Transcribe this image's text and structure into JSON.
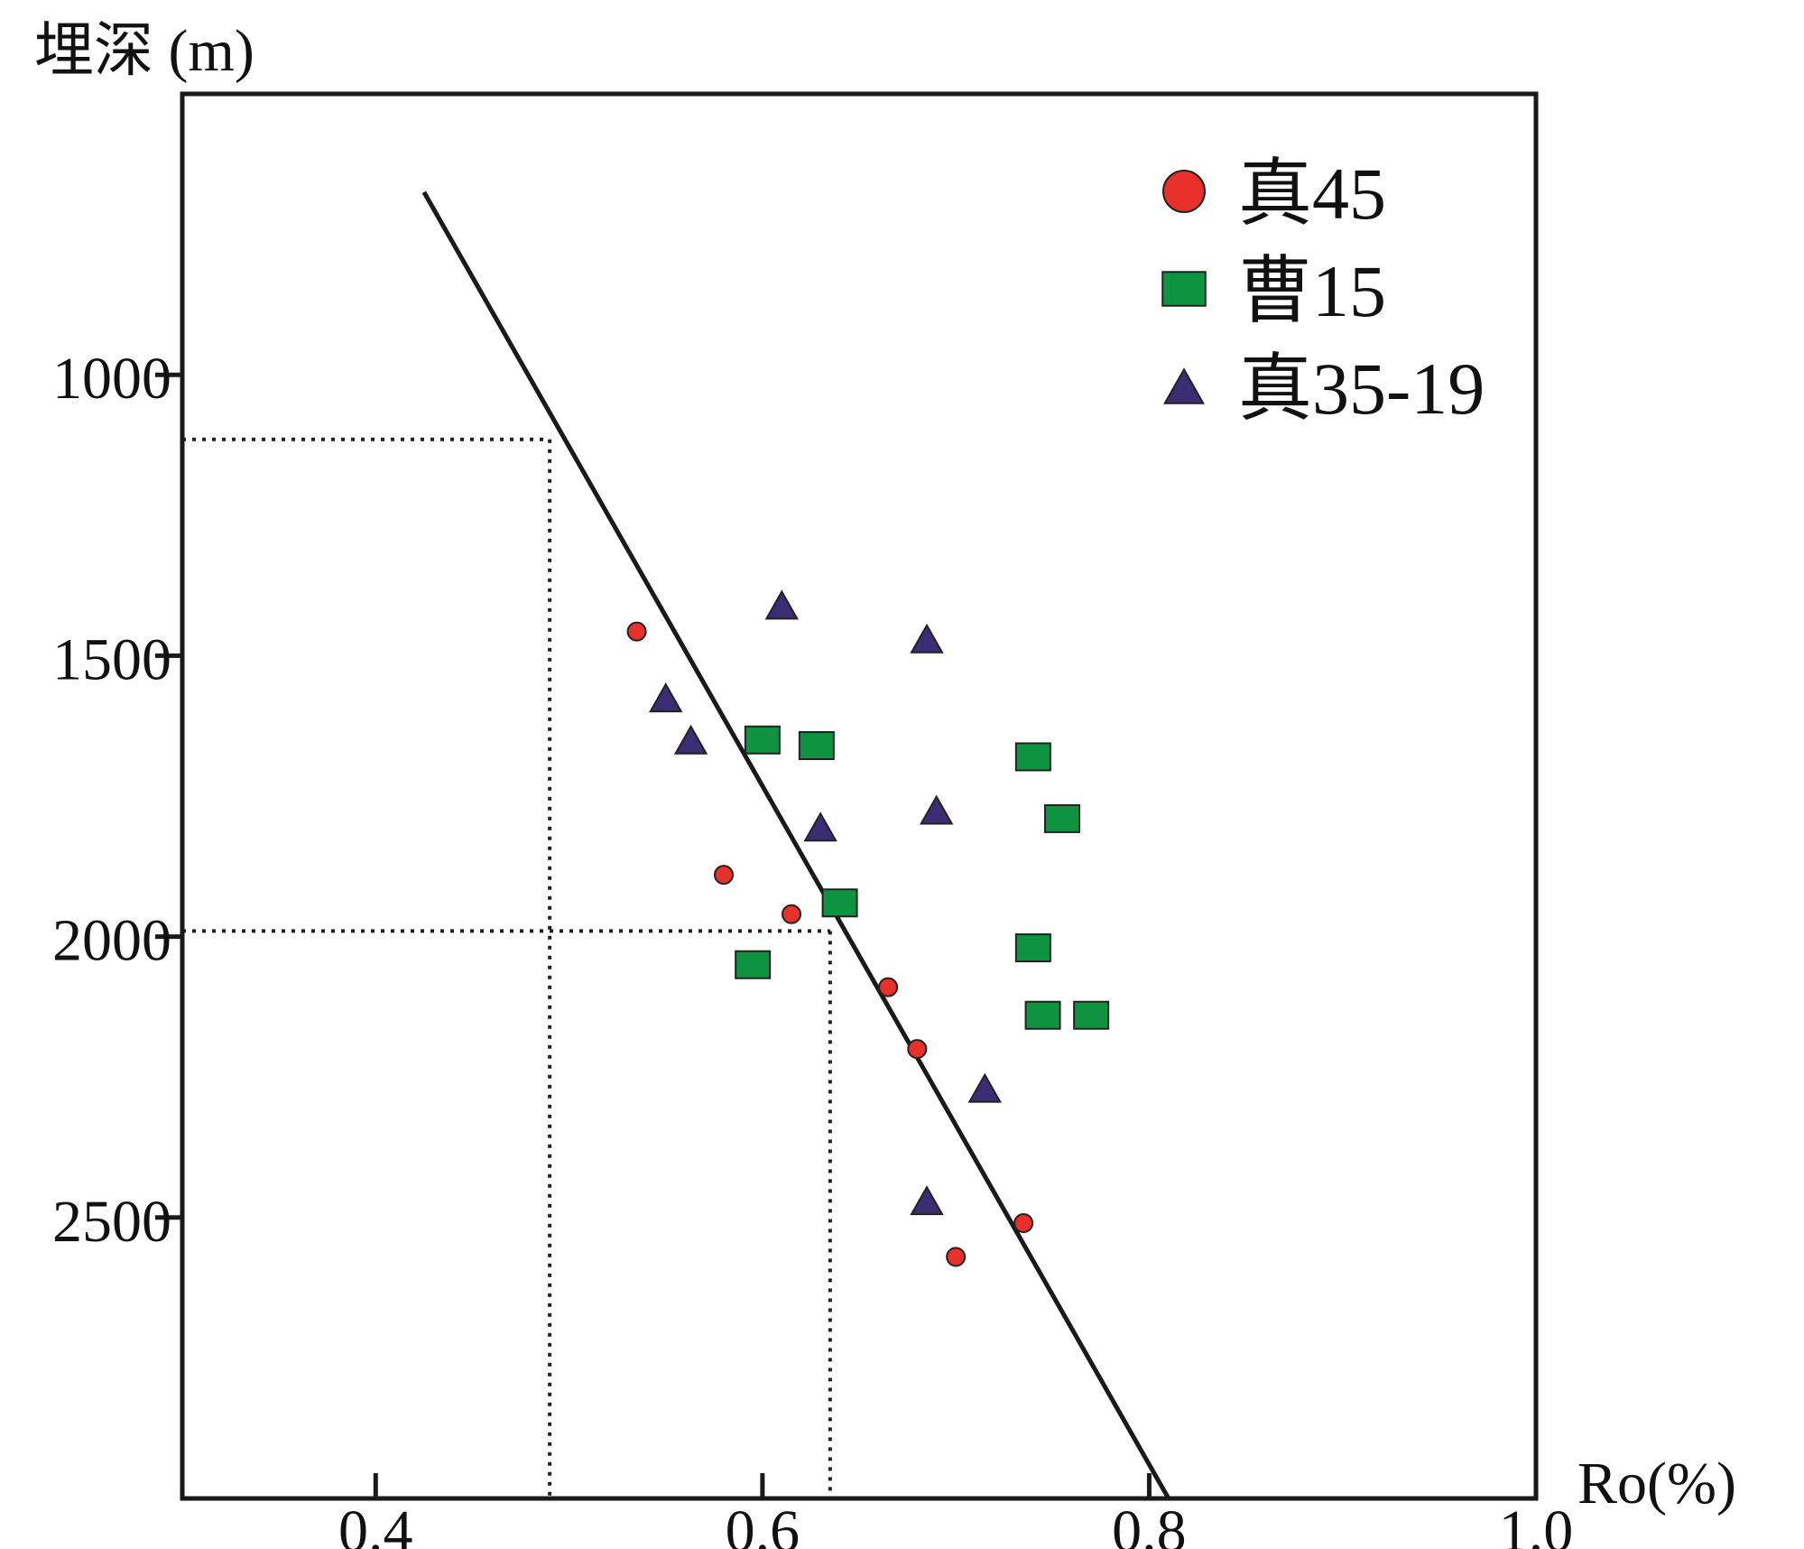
{
  "chart_data": {
    "type": "scatter",
    "title": "",
    "xlabel": "Ro(%)",
    "ylabel": "埋深 (m)",
    "xlim": [
      0.3,
      1.0
    ],
    "ylim": [
      500,
      3000
    ],
    "y_inverted": true,
    "grid": false,
    "legend_position": "top-right",
    "x_ticks": [
      {
        "value": 0.4,
        "label": "0.4"
      },
      {
        "value": 0.6,
        "label": "0.6"
      },
      {
        "value": 0.8,
        "label": "0.8"
      },
      {
        "value": 1.0,
        "label": "1.0"
      }
    ],
    "y_ticks": [
      {
        "value": 1000,
        "label": "1000"
      },
      {
        "value": 1500,
        "label": "1500"
      },
      {
        "value": 2000,
        "label": "2000"
      },
      {
        "value": 2500,
        "label": "2500"
      }
    ],
    "series": [
      {
        "name": "真45",
        "marker": "circle",
        "color": "#e8312a",
        "points": [
          [
            0.535,
            1457
          ],
          [
            0.58,
            1890
          ],
          [
            0.615,
            1960
          ],
          [
            0.665,
            2090
          ],
          [
            0.68,
            2200
          ],
          [
            0.7,
            2570
          ],
          [
            0.735,
            2510
          ]
        ]
      },
      {
        "name": "曹15",
        "marker": "square",
        "color": "#0e9441",
        "points": [
          [
            0.6,
            1650
          ],
          [
            0.628,
            1660
          ],
          [
            0.64,
            1940
          ],
          [
            0.595,
            2050
          ],
          [
            0.74,
            1680
          ],
          [
            0.755,
            1790
          ],
          [
            0.74,
            2020
          ],
          [
            0.745,
            2140
          ],
          [
            0.77,
            2140
          ]
        ]
      },
      {
        "name": "真35-19",
        "marker": "triangle",
        "color": "#3b2d73",
        "points": [
          [
            0.61,
            1410
          ],
          [
            0.685,
            1470
          ],
          [
            0.55,
            1575
          ],
          [
            0.563,
            1650
          ],
          [
            0.63,
            1805
          ],
          [
            0.69,
            1775
          ],
          [
            0.715,
            2270
          ],
          [
            0.685,
            2470
          ]
        ]
      }
    ],
    "trend_line": {
      "points": [
        [
          0.425,
          675
        ],
        [
          0.81,
          3000
        ]
      ]
    },
    "reference_lines": [
      {
        "ro": 0.49,
        "depth": 1115
      },
      {
        "ro": 0.635,
        "depth": 1990
      }
    ]
  }
}
